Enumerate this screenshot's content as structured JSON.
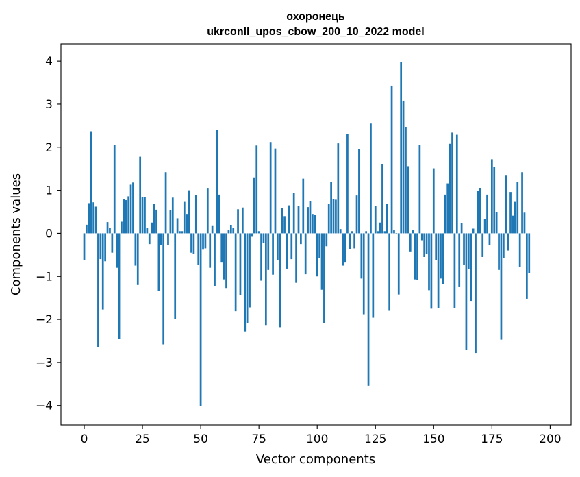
{
  "chart_data": {
    "type": "bar",
    "title": "охоронець",
    "subtitle": "ukrconll_upos_cbow_200_10_2022 model",
    "xlabel": "Vector components",
    "ylabel": "Components values",
    "xlim": [
      -10,
      209
    ],
    "ylim": [
      -4.45,
      4.4
    ],
    "xticks": [
      0,
      25,
      50,
      75,
      100,
      125,
      150,
      175,
      200
    ],
    "yticks": [
      -4,
      -3,
      -2,
      -1,
      0,
      1,
      2,
      3,
      4
    ],
    "bar_color": "#1f77b4",
    "grid": false,
    "values": [
      -0.62,
      0.2,
      0.7,
      2.37,
      0.72,
      0.62,
      -2.65,
      -0.6,
      -1.77,
      -0.65,
      0.26,
      0.12,
      -0.45,
      2.06,
      -0.8,
      -2.45,
      0.27,
      0.8,
      0.77,
      0.86,
      1.13,
      1.18,
      -0.75,
      -1.2,
      1.78,
      0.85,
      0.84,
      0.13,
      -0.25,
      0.25,
      0.68,
      0.55,
      -1.33,
      -0.28,
      -2.58,
      1.42,
      -0.27,
      0.54,
      0.83,
      -1.99,
      0.35,
      0.05,
      0.05,
      0.73,
      0.45,
      1.0,
      -0.45,
      -0.47,
      0.89,
      -0.73,
      -4.02,
      -0.38,
      -0.35,
      1.04,
      -0.8,
      0.17,
      -1.22,
      2.4,
      0.9,
      -0.68,
      -1.07,
      -1.27,
      0.07,
      0.19,
      0.13,
      -1.81,
      0.56,
      -1.44,
      0.6,
      -2.28,
      -2.08,
      -1.72,
      -0.08,
      1.3,
      2.04,
      0.05,
      -1.1,
      -0.22,
      -2.13,
      -0.85,
      2.12,
      -0.96,
      1.97,
      -0.63,
      -2.18,
      0.59,
      0.4,
      -0.82,
      0.65,
      -0.6,
      0.94,
      -1.15,
      0.64,
      -0.25,
      1.27,
      -0.95,
      0.61,
      0.75,
      0.45,
      0.43,
      -1.0,
      -0.58,
      -1.31,
      -2.09,
      -0.3,
      0.68,
      1.19,
      0.8,
      0.78,
      2.09,
      0.1,
      -0.75,
      -0.68,
      2.31,
      -0.37,
      0.05,
      -0.35,
      0.88,
      1.95,
      -1.05,
      -1.88,
      0.05,
      -3.54,
      2.55,
      -1.96,
      0.64,
      0.05,
      0.25,
      1.6,
      0.05,
      0.69,
      -1.8,
      3.43,
      0.07,
      -0.02,
      -1.42,
      3.98,
      3.08,
      2.47,
      1.56,
      -0.42,
      0.07,
      -1.07,
      -1.09,
      2.05,
      -0.16,
      -0.55,
      -0.48,
      -1.32,
      -1.75,
      1.51,
      -0.62,
      -1.74,
      -1.05,
      -1.18,
      0.9,
      1.16,
      2.08,
      2.34,
      -1.73,
      2.29,
      -1.25,
      0.23,
      -0.74,
      -2.7,
      -0.83,
      -1.57,
      0.11,
      -2.78,
      0.99,
      1.05,
      -0.55,
      0.33,
      0.9,
      -0.28,
      1.72,
      1.55,
      0.5,
      -0.85,
      -2.47,
      -0.58,
      1.34,
      -0.4,
      0.96,
      0.41,
      0.73,
      1.2,
      -0.78,
      1.42,
      0.48,
      -1.52,
      -0.93
    ]
  }
}
